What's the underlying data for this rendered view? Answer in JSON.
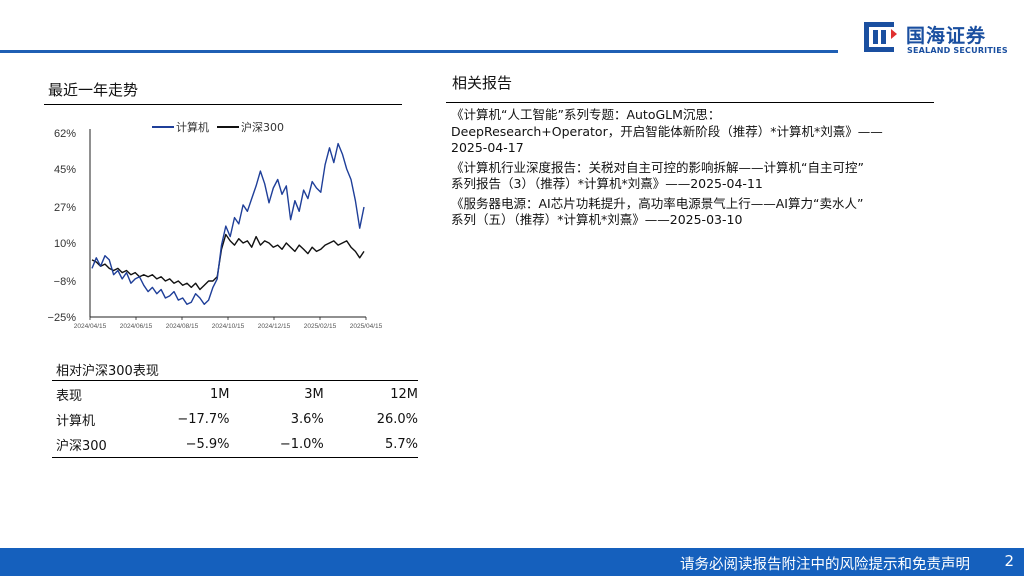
{
  "header": {
    "logo_cn": "国海证券",
    "logo_en": "SEALAND SECURITIES",
    "accent_color": "#1f5fb4"
  },
  "trend": {
    "title": "最近一年走势"
  },
  "chart_data": {
    "type": "line",
    "title": "",
    "xlabel": "",
    "ylabel": "",
    "ylim": [
      -25,
      62
    ],
    "yticks": [
      "62%",
      "45%",
      "27%",
      "10%",
      "−8%",
      "−25%"
    ],
    "ytick_values": [
      62,
      45,
      27,
      10,
      -8,
      -25
    ],
    "xticks": [
      "2024/04/15",
      "2024/06/15",
      "2024/08/15",
      "2024/10/15",
      "2024/12/15",
      "2025/02/15",
      "2025/04/15"
    ],
    "legend": "top",
    "grid": false,
    "series": [
      {
        "name": "计算机",
        "color": "#1f3f99",
        "values": [
          -2,
          3,
          -1,
          4,
          2,
          -5,
          -3,
          -7,
          -4,
          -9,
          -7,
          -6,
          -10,
          -13,
          -11,
          -14,
          -12,
          -16,
          -15,
          -13,
          -17,
          -16,
          -19,
          -18,
          -14,
          -16,
          -19,
          -17,
          -11,
          -7,
          9,
          18,
          13,
          22,
          19,
          28,
          25,
          31,
          37,
          44,
          38,
          29,
          36,
          40,
          33,
          37,
          21,
          30,
          25,
          35,
          31,
          39,
          36,
          34,
          47,
          55,
          48,
          57,
          52,
          45,
          40,
          30,
          17,
          27
        ]
      },
      {
        "name": "沪深300",
        "color": "#111111",
        "values": [
          2,
          1,
          -1,
          0,
          -2,
          -3,
          -2,
          -4,
          -3,
          -5,
          -4,
          -6,
          -5,
          -6,
          -5,
          -7,
          -6,
          -8,
          -7,
          -9,
          -8,
          -10,
          -9,
          -11,
          -9,
          -12,
          -10,
          -8,
          -8,
          -6,
          7,
          14,
          11,
          9,
          12,
          10,
          11,
          8,
          13,
          9,
          11,
          10,
          8,
          9,
          7,
          10,
          8,
          6,
          9,
          7,
          5,
          8,
          6,
          7,
          9,
          10,
          11,
          9,
          10,
          11,
          8,
          6,
          3,
          6
        ]
      }
    ]
  },
  "reports": {
    "title": "相关报告",
    "items": [
      "《计算机“人工智能”系列专题：AutoGLM沉思：\nDeepResearch+Operator，开启智能体新阶段（推荐）*计算机*刘熹》——\n2025-04-17",
      "《计算机行业深度报告：关税对自主可控的影响拆解——计算机“自主可控”\n系列报告（3）（推荐）*计算机*刘熹》——2025-04-11",
      "《服务器电源：AI芯片功耗提升，高功率电源景气上行——AI算力“卖水人”\n系列（五）（推荐）*计算机*刘熹》——2025-03-10"
    ]
  },
  "performance": {
    "title": "相对沪深300表现",
    "header": [
      "表现",
      "1M",
      "3M",
      "12M"
    ],
    "rows": [
      [
        "计算机",
        "−17.7%",
        "3.6%",
        "26.0%"
      ],
      [
        "沪深300",
        "−5.9%",
        "−1.0%",
        "5.7%"
      ]
    ]
  },
  "footer": {
    "disclaimer": "请务必阅读报告附注中的风险提示和免责声明",
    "page_number": "2",
    "color": "#1560bd"
  }
}
